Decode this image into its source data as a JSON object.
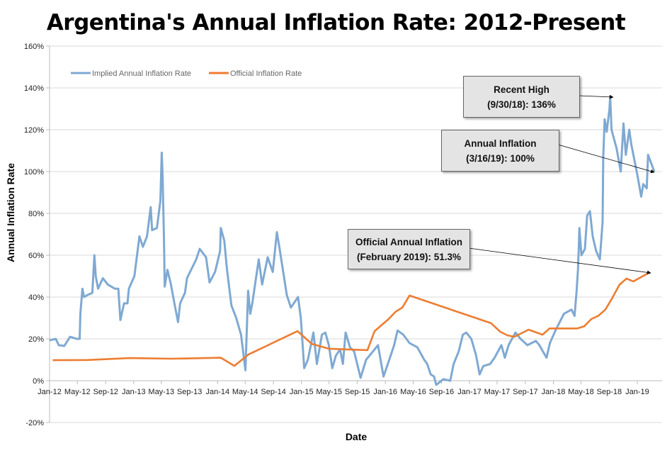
{
  "chart_data": {
    "type": "line",
    "title": "Argentina's Annual Inflation Rate: 2012-Present",
    "xlabel": "Date",
    "ylabel": "Annual Inflation Rate",
    "ylim": [
      -20,
      160
    ],
    "yticks": [
      "-20%",
      "0%",
      "20%",
      "40%",
      "60%",
      "80%",
      "100%",
      "120%",
      "140%",
      "160%"
    ],
    "xticks": [
      "Jan-12",
      "May-12",
      "Sep-12",
      "Jan-13",
      "May-13",
      "Sep-13",
      "Jan-14",
      "May-14",
      "Sep-14",
      "Jan-15",
      "May-15",
      "Sep-15",
      "Jan-16",
      "May-16",
      "Sep-16",
      "Jan-17",
      "May-17",
      "Sep-17",
      "Jan-18",
      "May-18",
      "Sep-18",
      "Jan-19"
    ],
    "grid": "horizontal",
    "legend_placement": "top-left",
    "series": [
      {
        "name": "Implied Annual Inflation Rate",
        "color": "#7FA9D2",
        "points": [
          [
            "2012-01-01",
            19.3
          ],
          [
            "2012-01-28",
            20
          ],
          [
            "2012-02-10",
            17
          ],
          [
            "2012-03-05",
            16.6
          ],
          [
            "2012-03-30",
            21
          ],
          [
            "2012-04-29",
            20
          ],
          [
            "2012-05-11",
            20
          ],
          [
            "2012-05-14",
            32
          ],
          [
            "2012-05-23",
            44
          ],
          [
            "2012-05-30",
            40
          ],
          [
            "2012-06-14",
            41
          ],
          [
            "2012-07-05",
            42
          ],
          [
            "2012-07-14",
            60
          ],
          [
            "2012-07-20",
            50
          ],
          [
            "2012-07-30",
            44
          ],
          [
            "2012-08-20",
            49
          ],
          [
            "2012-09-10",
            46
          ],
          [
            "2012-10-11",
            44
          ],
          [
            "2012-10-26",
            44
          ],
          [
            "2012-11-04",
            29
          ],
          [
            "2012-11-20",
            37
          ],
          [
            "2012-12-05",
            37
          ],
          [
            "2012-12-11",
            44
          ],
          [
            "2013-01-04",
            50
          ],
          [
            "2013-01-26",
            69
          ],
          [
            "2013-02-10",
            64
          ],
          [
            "2013-02-28",
            69
          ],
          [
            "2013-03-16",
            83
          ],
          [
            "2013-03-22",
            72
          ],
          [
            "2013-04-12",
            73
          ],
          [
            "2013-04-27",
            86
          ],
          [
            "2013-05-03",
            109
          ],
          [
            "2013-05-07",
            97
          ],
          [
            "2013-05-13",
            67
          ],
          [
            "2013-05-16",
            45
          ],
          [
            "2013-05-28",
            53
          ],
          [
            "2013-06-12",
            46
          ],
          [
            "2013-06-27",
            37
          ],
          [
            "2013-07-13",
            28
          ],
          [
            "2013-07-22",
            37
          ],
          [
            "2013-08-12",
            42
          ],
          [
            "2013-08-21",
            49
          ],
          [
            "2013-09-30",
            58
          ],
          [
            "2013-10-15",
            63
          ],
          [
            "2013-11-12",
            59
          ],
          [
            "2013-11-27",
            47
          ],
          [
            "2013-12-21",
            52
          ],
          [
            "2014-01-12",
            62
          ],
          [
            "2014-01-15",
            73
          ],
          [
            "2014-01-30",
            67
          ],
          [
            "2014-02-11",
            53
          ],
          [
            "2014-03-02",
            36
          ],
          [
            "2014-03-23",
            30
          ],
          [
            "2014-04-13",
            22
          ],
          [
            "2014-05-02",
            5
          ],
          [
            "2014-05-14",
            43
          ],
          [
            "2014-05-23",
            32
          ],
          [
            "2014-06-01",
            37
          ],
          [
            "2014-06-29",
            58
          ],
          [
            "2014-07-14",
            46
          ],
          [
            "2014-08-07",
            59
          ],
          [
            "2014-08-29",
            52
          ],
          [
            "2014-09-16",
            71
          ],
          [
            "2014-09-28",
            63
          ],
          [
            "2014-10-29",
            41
          ],
          [
            "2014-11-16",
            35
          ],
          [
            "2014-12-17",
            40
          ],
          [
            "2014-12-29",
            30
          ],
          [
            "2015-01-13",
            6
          ],
          [
            "2015-01-29",
            10
          ],
          [
            "2015-02-22",
            23
          ],
          [
            "2015-03-09",
            8
          ],
          [
            "2015-03-31",
            22
          ],
          [
            "2015-04-15",
            23
          ],
          [
            "2015-04-30",
            17
          ],
          [
            "2015-05-15",
            6
          ],
          [
            "2015-05-31",
            12
          ],
          [
            "2015-06-18",
            15
          ],
          [
            "2015-06-30",
            8
          ],
          [
            "2015-07-12",
            23
          ],
          [
            "2015-07-31",
            16
          ],
          [
            "2015-08-18",
            14
          ],
          [
            "2015-09-15",
            1.4
          ],
          [
            "2015-10-09",
            10
          ],
          [
            "2015-11-08",
            14
          ],
          [
            "2015-11-30",
            17
          ],
          [
            "2015-12-24",
            2
          ],
          [
            "2016-01-18",
            10
          ],
          [
            "2016-02-08",
            17
          ],
          [
            "2016-02-23",
            24
          ],
          [
            "2016-03-19",
            22
          ],
          [
            "2016-04-15",
            18
          ],
          [
            "2016-05-19",
            16
          ],
          [
            "2016-06-18",
            10
          ],
          [
            "2016-07-01",
            8
          ],
          [
            "2016-07-16",
            3
          ],
          [
            "2016-07-31",
            2
          ],
          [
            "2016-08-09",
            -2
          ],
          [
            "2016-09-09",
            0.7
          ],
          [
            "2016-10-09",
            0
          ],
          [
            "2016-10-24",
            8
          ],
          [
            "2016-11-15",
            14
          ],
          [
            "2016-12-03",
            22
          ],
          [
            "2016-12-18",
            23
          ],
          [
            "2017-01-09",
            20
          ],
          [
            "2017-01-30",
            12
          ],
          [
            "2017-02-14",
            3
          ],
          [
            "2017-03-02",
            7
          ],
          [
            "2017-04-01",
            8
          ],
          [
            "2017-04-20",
            11
          ],
          [
            "2017-05-20",
            17
          ],
          [
            "2017-06-04",
            11
          ],
          [
            "2017-06-20",
            17
          ],
          [
            "2017-07-20",
            23
          ],
          [
            "2017-08-11",
            20
          ],
          [
            "2017-09-10",
            17
          ],
          [
            "2017-10-17",
            19
          ],
          [
            "2017-11-01",
            17
          ],
          [
            "2017-12-02",
            11
          ],
          [
            "2017-12-17",
            18
          ],
          [
            "2018-01-10",
            24
          ],
          [
            "2018-02-16",
            32
          ],
          [
            "2018-03-21",
            34
          ],
          [
            "2018-04-03",
            31
          ],
          [
            "2018-04-12",
            43
          ],
          [
            "2018-04-18",
            53
          ],
          [
            "2018-04-21",
            62
          ],
          [
            "2018-04-24",
            73
          ],
          [
            "2018-05-03",
            60
          ],
          [
            "2018-05-18",
            63
          ],
          [
            "2018-05-28",
            79
          ],
          [
            "2018-06-09",
            81
          ],
          [
            "2018-06-21",
            69
          ],
          [
            "2018-07-06",
            62
          ],
          [
            "2018-07-22",
            58
          ],
          [
            "2018-08-03",
            76
          ],
          [
            "2018-08-06",
            107
          ],
          [
            "2018-08-12",
            125
          ],
          [
            "2018-08-21",
            119
          ],
          [
            "2018-09-02",
            130
          ],
          [
            "2018-09-05",
            136
          ],
          [
            "2018-09-11",
            120
          ],
          [
            "2018-10-03",
            111
          ],
          [
            "2018-10-21",
            100
          ],
          [
            "2018-11-02",
            123
          ],
          [
            "2018-11-12",
            108
          ],
          [
            "2018-11-27",
            120
          ],
          [
            "2018-12-06",
            113
          ],
          [
            "2019-01-02",
            98
          ],
          [
            "2019-01-18",
            88
          ],
          [
            "2019-01-27",
            94
          ],
          [
            "2019-02-11",
            92
          ],
          [
            "2019-02-17",
            108
          ],
          [
            "2019-03-16",
            100
          ]
        ]
      },
      {
        "name": "Official Inflation Rate",
        "color": "#ED7D31",
        "points": [
          [
            "2012-01-15",
            9.8
          ],
          [
            "2012-06-15",
            9.9
          ],
          [
            "2012-12-15",
            10.8
          ],
          [
            "2013-06-15",
            10.5
          ],
          [
            "2013-12-15",
            10.9
          ],
          [
            "2014-01-15",
            11
          ],
          [
            "2014-03-15",
            7.1
          ],
          [
            "2014-05-15",
            12.5
          ],
          [
            "2014-12-15",
            23.7
          ],
          [
            "2015-02-15",
            17.6
          ],
          [
            "2015-04-30",
            15.3
          ],
          [
            "2015-10-15",
            14.6
          ],
          [
            "2015-11-15",
            23.7
          ],
          [
            "2016-01-15",
            29.5
          ],
          [
            "2016-02-15",
            33
          ],
          [
            "2016-03-15",
            35
          ],
          [
            "2016-04-15",
            40.7
          ],
          [
            "2017-04-05",
            27.5
          ],
          [
            "2017-05-15",
            23.4
          ],
          [
            "2017-06-15",
            21.7
          ],
          [
            "2017-07-15",
            21
          ],
          [
            "2017-09-15",
            24.4
          ],
          [
            "2017-11-15",
            22
          ],
          [
            "2017-12-15",
            25
          ],
          [
            "2018-04-15",
            25
          ],
          [
            "2018-05-15",
            26
          ],
          [
            "2018-06-15",
            29.5
          ],
          [
            "2018-07-15",
            31
          ],
          [
            "2018-08-15",
            34
          ],
          [
            "2018-09-15",
            39.7
          ],
          [
            "2018-10-15",
            45.8
          ],
          [
            "2018-11-15",
            48.8
          ],
          [
            "2018-12-15",
            47.5
          ],
          [
            "2019-02-15",
            51.3
          ]
        ]
      }
    ],
    "annotations": [
      {
        "line1": "Recent High",
        "line2": "(9/30/18): 136%"
      },
      {
        "line1": "Annual Inflation",
        "line2": "(3/16/19): 100%"
      },
      {
        "line1": "Official Annual Inflation",
        "line2": "(February 2019): 51.3%"
      }
    ]
  }
}
